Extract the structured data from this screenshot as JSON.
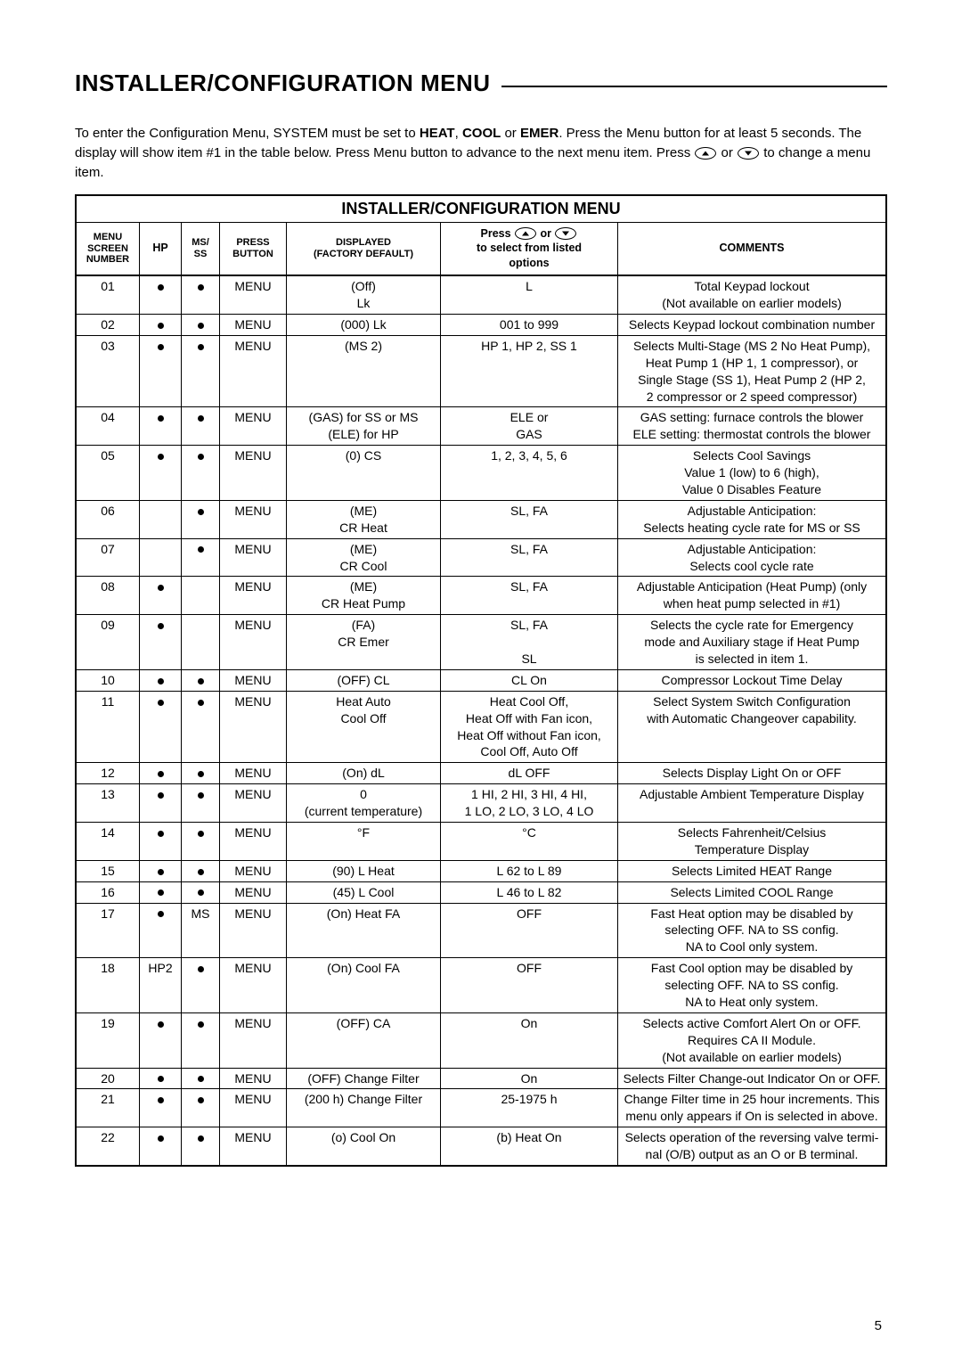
{
  "title": "INSTALLER/CONFIGURATION MENU",
  "intro": {
    "pre": "To enter the Configuration Menu, SYSTEM must be set to ",
    "m1": "HEAT",
    "m2": "COOL",
    "m3": "EMER",
    "mid1": ". Press the Menu button for at least 5 seconds. The display will show item #1 in the table below. Press Menu button to advance to the next menu item. Press ",
    "or": " or ",
    "post": " to change a menu item."
  },
  "tableTitle": "INSTALLER/CONFIGURATION MENU",
  "headers": {
    "num": "MENU SCREEN NUMBER",
    "hp": "HP",
    "ss": "MS/ SS",
    "btn": "PRESS BUTTON",
    "disp": "DISPLAYED (FACTORY DEFAULT)",
    "opts_pre": "Press ",
    "opts_or": " or ",
    "opts_post": " to select from listed options",
    "cmt": "COMMENTS"
  },
  "rows": [
    {
      "n": "01",
      "hp": "●",
      "ss": "●",
      "btn": "MENU",
      "disp": "(Off)\nLk",
      "opts": "L",
      "cmt": "Total Keypad lockout\n(Not available on earlier models)"
    },
    {
      "n": "02",
      "hp": "●",
      "ss": "●",
      "btn": "MENU",
      "disp": "(000) Lk",
      "opts": "001 to 999",
      "cmt": "Selects Keypad lockout combination number"
    },
    {
      "n": "03",
      "hp": "●",
      "ss": "●",
      "btn": "MENU",
      "disp": "(MS 2)",
      "opts": "HP 1, HP 2, SS 1",
      "cmt": "Selects Multi-Stage (MS 2 No Heat Pump),\nHeat Pump 1 (HP 1, 1 compressor), or\nSingle Stage (SS 1), Heat Pump 2 (HP 2,\n2 compressor or 2 speed compressor)"
    },
    {
      "n": "04",
      "hp": "●",
      "ss": "●",
      "btn": "MENU",
      "disp": "(GAS) for SS or MS\n(ELE) for HP",
      "opts": "ELE or\nGAS",
      "cmt": "GAS setting: furnace controls the blower\nELE setting: thermostat controls the blower"
    },
    {
      "n": "05",
      "hp": "●",
      "ss": "●",
      "btn": "MENU",
      "disp": "(0) CS",
      "opts": "1, 2, 3, 4, 5, 6",
      "cmt": "Selects Cool Savings\nValue 1 (low) to 6 (high),\nValue 0 Disables Feature"
    },
    {
      "n": "06",
      "hp": "",
      "ss": "●",
      "btn": "MENU",
      "disp": "(ME)\nCR Heat",
      "opts": "SL, FA",
      "cmt": "Adjustable Anticipation:\nSelects heating cycle rate for MS or SS"
    },
    {
      "n": "07",
      "hp": "",
      "ss": "●",
      "btn": "MENU",
      "disp": "(ME)\nCR Cool",
      "opts": "SL, FA",
      "cmt": "Adjustable Anticipation:\nSelects cool cycle rate"
    },
    {
      "n": "08",
      "hp": "●",
      "ss": "",
      "btn": "MENU",
      "disp": "(ME)\nCR Heat Pump",
      "opts": "SL, FA",
      "cmt": "Adjustable Anticipation (Heat Pump) (only\nwhen heat pump selected in #1)"
    },
    {
      "n": "09",
      "hp": "●",
      "ss": "",
      "btn": "MENU",
      "disp": "(FA)\nCR Emer",
      "opts": "SL, FA\n\nSL",
      "cmt": "Selects the cycle rate for Emergency\nmode and Auxiliary stage if Heat Pump\nis selected in item 1."
    },
    {
      "n": "10",
      "hp": "●",
      "ss": "●",
      "btn": "MENU",
      "disp": "(OFF) CL",
      "opts": "CL On",
      "cmt": "Compressor Lockout Time Delay"
    },
    {
      "n": "11",
      "hp": "●",
      "ss": "●",
      "btn": "MENU",
      "disp": "Heat Auto\nCool Off",
      "opts": "Heat Cool Off,\nHeat Off with Fan icon,\nHeat Off without Fan icon,\nCool Off, Auto Off",
      "cmt": "Select System Switch Configuration\nwith Automatic Changeover capability."
    },
    {
      "n": "12",
      "hp": "●",
      "ss": "●",
      "btn": "MENU",
      "disp": "(On) dL",
      "opts": "dL OFF",
      "cmt": "Selects Display Light On or OFF"
    },
    {
      "n": "13",
      "hp": "●",
      "ss": "●",
      "btn": "MENU",
      "disp": "0\n(current temperature)",
      "opts": "1 HI, 2 HI, 3 HI, 4 HI,\n1 LO, 2 LO, 3 LO, 4 LO",
      "cmt": "Adjustable Ambient Temperature Display"
    },
    {
      "n": "14",
      "hp": "●",
      "ss": "●",
      "btn": "MENU",
      "disp": "°F",
      "opts": "°C",
      "cmt": "Selects Fahrenheit/Celsius\nTemperature Display"
    },
    {
      "n": "15",
      "hp": "●",
      "ss": "●",
      "btn": "MENU",
      "disp": "(90) L Heat",
      "opts": "L 62 to L 89",
      "cmt": "Selects Limited HEAT Range"
    },
    {
      "n": "16",
      "hp": "●",
      "ss": "●",
      "btn": "MENU",
      "disp": "(45) L Cool",
      "opts": "L 46 to L 82",
      "cmt": "Selects Limited COOL Range"
    },
    {
      "n": "17",
      "hp": "●",
      "ss": "MS",
      "btn": "MENU",
      "disp": "(On) Heat FA",
      "opts": "OFF",
      "cmt": "Fast Heat option may be disabled by\nselecting OFF. NA to SS config.\nNA to Cool only system."
    },
    {
      "n": "18",
      "hp": "HP2",
      "ss": "●",
      "btn": "MENU",
      "disp": "(On) Cool FA",
      "opts": "OFF",
      "cmt": "Fast Cool option may be disabled by\nselecting OFF. NA to SS config.\nNA to Heat only system."
    },
    {
      "n": "19",
      "hp": "●",
      "ss": "●",
      "btn": "MENU",
      "disp": "(OFF) CA",
      "opts": "On",
      "cmt": "Selects active Comfort Alert On or OFF.\nRequires CA II Module.\n(Not available on earlier models)"
    },
    {
      "n": "20",
      "hp": "●",
      "ss": "●",
      "btn": "MENU",
      "disp": "(OFF) Change Filter",
      "opts": "On",
      "cmt": "Selects Filter Change-out Indicator On or OFF."
    },
    {
      "n": "21",
      "hp": "●",
      "ss": "●",
      "btn": "MENU",
      "disp": "(200 h) Change Filter",
      "opts": "25-1975 h",
      "cmt": "Change Filter time in 25 hour increments. This\nmenu only appears if On is selected in above."
    },
    {
      "n": "22",
      "hp": "●",
      "ss": "●",
      "btn": "MENU",
      "disp": "(o) Cool On",
      "opts": "(b) Heat On",
      "cmt": "Selects operation of the reversing valve termi-\nnal (O/B) output as an O or B terminal."
    }
  ],
  "pageNumber": "5"
}
